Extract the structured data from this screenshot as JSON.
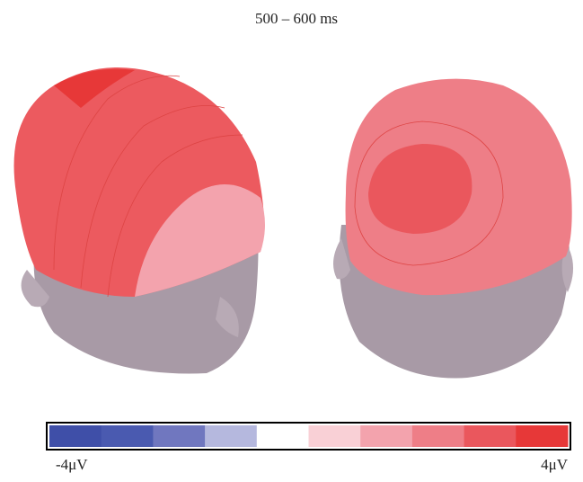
{
  "title": "500 – 600 ms",
  "colorbar": {
    "colors": [
      "#3f4fa8",
      "#4a5ab0",
      "#7077bf",
      "#b5b8de",
      "#ffffff",
      "#f9d0d6",
      "#f3a3ad",
      "#ee7e87",
      "#ea575d",
      "#e73838"
    ],
    "min_label": "-4μV",
    "max_label": "4μV"
  }
}
